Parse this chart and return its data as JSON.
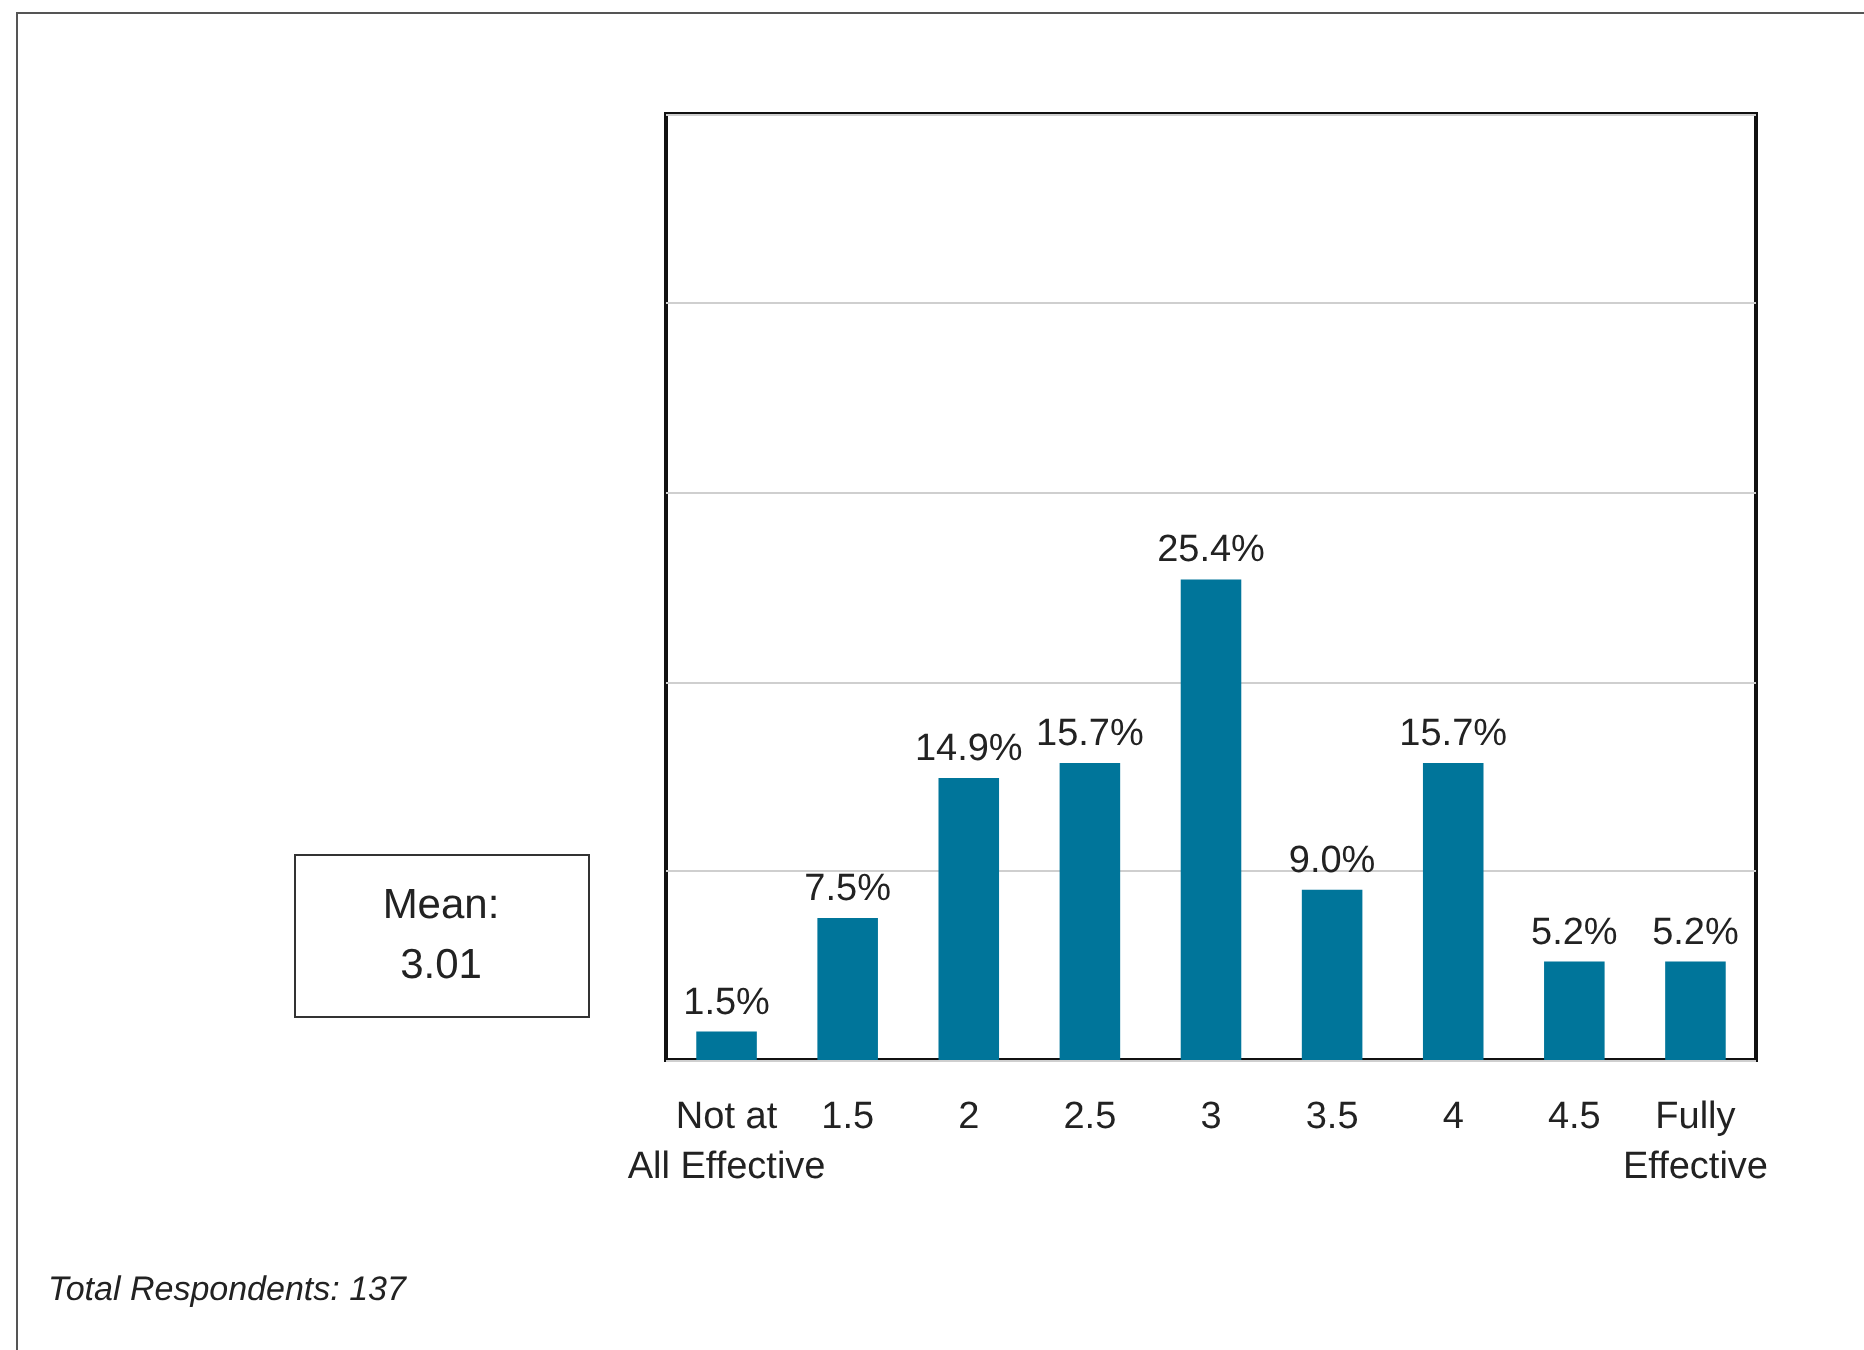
{
  "chart_data": {
    "type": "bar",
    "categories": [
      "Not at\nAll Effective",
      "1.5",
      "2",
      "2.5",
      "3",
      "3.5",
      "4",
      "4.5",
      "Fully\nEffective"
    ],
    "values": [
      1.5,
      7.5,
      14.9,
      15.7,
      25.4,
      9.0,
      15.7,
      5.2,
      5.2
    ],
    "color": "#00759a",
    "value_labels": [
      "1.5%",
      "7.5%",
      "14.9%",
      "15.7%",
      "25.4%",
      "9.0%",
      "15.7%",
      "5.2%",
      "5.2%"
    ],
    "ylim": [
      0,
      50
    ],
    "yticks": [
      {
        "value": 0,
        "label": null
      },
      {
        "value": 10,
        "label": null
      },
      {
        "value": 20,
        "label": null
      },
      {
        "value": 30,
        "label": null
      },
      {
        "value": 40,
        "label": null
      },
      {
        "value": 50,
        "label": null
      }
    ],
    "tick_labels": "x",
    "grid": "y",
    "annotations": [
      "Mean:\n3.01",
      "Total Respondents: 137"
    ]
  }
}
